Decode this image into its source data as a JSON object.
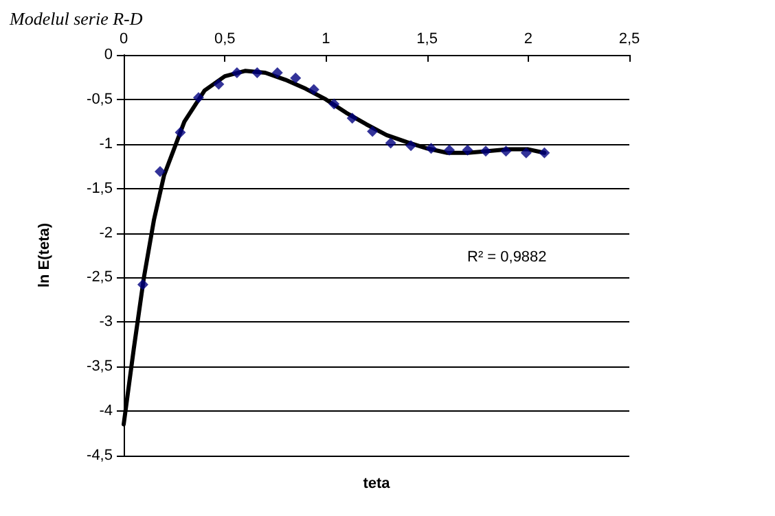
{
  "chart_data": {
    "type": "scatter",
    "title": "Modelul serie R-D",
    "xlabel": "teta",
    "ylabel": "ln E(teta)",
    "xlim": [
      0,
      2.5
    ],
    "xticks": [
      {
        "value": 0,
        "label": "0"
      },
      {
        "value": 0.5,
        "label": "0,5"
      },
      {
        "value": 1,
        "label": "1"
      },
      {
        "value": 1.5,
        "label": "1,5"
      },
      {
        "value": 2,
        "label": "2"
      },
      {
        "value": 2.5,
        "label": "2,5"
      }
    ],
    "ylim": [
      -4.5,
      0
    ],
    "yticks": [
      {
        "value": -4.5,
        "label": "-4,5"
      },
      {
        "value": -4,
        "label": "-4"
      },
      {
        "value": -3.5,
        "label": "-3,5"
      },
      {
        "value": -3,
        "label": "-3"
      },
      {
        "value": -2.5,
        "label": "-2,5"
      },
      {
        "value": -2,
        "label": "-2"
      },
      {
        "value": -1.5,
        "label": "-1,5"
      },
      {
        "value": -1,
        "label": "-1"
      },
      {
        "value": -0.5,
        "label": "-0,5"
      },
      {
        "value": 0,
        "label": "0"
      }
    ],
    "grid": "y",
    "marker": "diamond",
    "annotations": [
      "R² = 0,9882"
    ],
    "series": [
      {
        "color": "#000080",
        "x": [
          0.095,
          0.18,
          0.28,
          0.37,
          0.47,
          0.56,
          0.66,
          0.76,
          0.85,
          0.94,
          1.04,
          1.13,
          1.23,
          1.32,
          1.42,
          1.52,
          1.61,
          1.7,
          1.79,
          1.89,
          1.99,
          2.08
        ],
        "values": [
          -2.58,
          -1.31,
          -0.87,
          -0.48,
          -0.33,
          -0.2,
          -0.2,
          -0.2,
          -0.26,
          -0.39,
          -0.55,
          -0.71,
          -0.86,
          -0.99,
          -1.02,
          -1.05,
          -1.07,
          -1.07,
          -1.08,
          -1.08,
          -1.1,
          -1.1
        ]
      },
      {
        "type": "line",
        "color": "#000000",
        "marker": "none",
        "line_style": "solid",
        "x": [
          0,
          0.05,
          0.1,
          0.15,
          0.2,
          0.3,
          0.4,
          0.5,
          0.6,
          0.7,
          0.8,
          0.9,
          1.0,
          1.1,
          1.2,
          1.3,
          1.4,
          1.5,
          1.6,
          1.7,
          1.8,
          1.9,
          2.0,
          2.08
        ],
        "values": [
          -4.15,
          -3.3,
          -2.5,
          -1.85,
          -1.35,
          -0.75,
          -0.4,
          -0.24,
          -0.18,
          -0.2,
          -0.28,
          -0.38,
          -0.5,
          -0.65,
          -0.78,
          -0.9,
          -0.98,
          -1.05,
          -1.1,
          -1.1,
          -1.08,
          -1.06,
          -1.06,
          -1.1
        ]
      }
    ]
  }
}
